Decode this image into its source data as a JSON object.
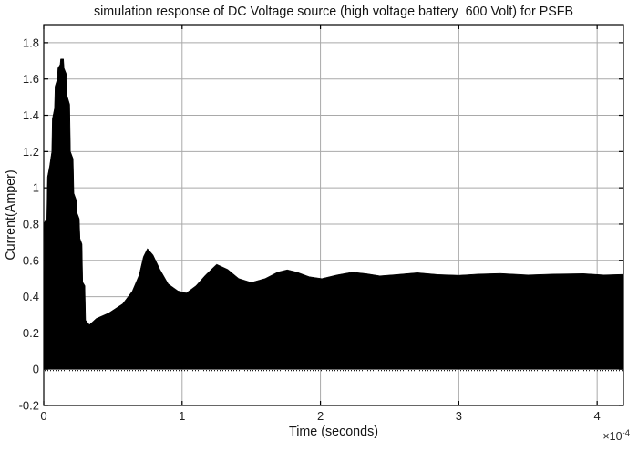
{
  "chart_data": {
    "type": "area",
    "title": "simulation response of DC Voltage source (high voltage battery  600 Volt) for PSFB",
    "xlabel": "Time (seconds)",
    "ylabel": "Current(Amper)",
    "x_multiplier": {
      "base": "×10",
      "exponent": "-4"
    },
    "xlim": [
      0,
      4.19
    ],
    "ylim": [
      -0.2,
      1.9
    ],
    "grid": true,
    "legend": "none",
    "axis_color": "#000000",
    "grid_color": "#a9a9a9",
    "text_color": "#1f1f1f",
    "xticks": [
      {
        "v": 0,
        "label": "0"
      },
      {
        "v": 1,
        "label": "1"
      },
      {
        "v": 2,
        "label": "2"
      },
      {
        "v": 3,
        "label": "3"
      },
      {
        "v": 4,
        "label": "4"
      }
    ],
    "yticks": [
      {
        "v": -0.2,
        "label": "-0.2"
      },
      {
        "v": 0,
        "label": "0"
      },
      {
        "v": 0.2,
        "label": "0.2"
      },
      {
        "v": 0.4,
        "label": "0.4"
      },
      {
        "v": 0.6,
        "label": "0.6"
      },
      {
        "v": 0.8,
        "label": "0.8"
      },
      {
        "v": 1,
        "label": "1"
      },
      {
        "v": 1.2,
        "label": "1.2"
      },
      {
        "v": 1.4,
        "label": "1.4"
      },
      {
        "v": 1.6,
        "label": "1.6"
      },
      {
        "v": 1.8,
        "label": "1.8"
      }
    ],
    "series": [
      {
        "name": "current",
        "color": "#000000",
        "render": "filled-band-from-baseline",
        "baseline": 0,
        "x_unit": "1e-4 s",
        "envelope": [
          [
            0.0,
            0.05
          ],
          [
            0.005,
            0.81
          ],
          [
            0.022,
            0.83
          ],
          [
            0.027,
            1.06
          ],
          [
            0.042,
            1.12
          ],
          [
            0.058,
            1.2
          ],
          [
            0.062,
            1.38
          ],
          [
            0.078,
            1.44
          ],
          [
            0.082,
            1.56
          ],
          [
            0.098,
            1.6
          ],
          [
            0.102,
            1.66
          ],
          [
            0.118,
            1.68
          ],
          [
            0.122,
            1.71
          ],
          [
            0.143,
            1.71
          ],
          [
            0.147,
            1.66
          ],
          [
            0.163,
            1.63
          ],
          [
            0.168,
            1.51
          ],
          [
            0.188,
            1.46
          ],
          [
            0.193,
            1.2
          ],
          [
            0.213,
            1.16
          ],
          [
            0.218,
            0.97
          ],
          [
            0.237,
            0.93
          ],
          [
            0.242,
            0.86
          ],
          [
            0.257,
            0.83
          ],
          [
            0.262,
            0.72
          ],
          [
            0.277,
            0.69
          ],
          [
            0.282,
            0.48
          ],
          [
            0.298,
            0.46
          ],
          [
            0.303,
            0.27
          ],
          [
            0.33,
            0.245
          ],
          [
            0.38,
            0.28
          ],
          [
            0.47,
            0.31
          ],
          [
            0.57,
            0.36
          ],
          [
            0.64,
            0.43
          ],
          [
            0.69,
            0.52
          ],
          [
            0.72,
            0.62
          ],
          [
            0.75,
            0.665
          ],
          [
            0.79,
            0.63
          ],
          [
            0.84,
            0.55
          ],
          [
            0.9,
            0.47
          ],
          [
            0.97,
            0.432
          ],
          [
            1.03,
            0.42
          ],
          [
            1.1,
            0.46
          ],
          [
            1.17,
            0.52
          ],
          [
            1.25,
            0.578
          ],
          [
            1.33,
            0.55
          ],
          [
            1.41,
            0.5
          ],
          [
            1.5,
            0.478
          ],
          [
            1.6,
            0.5
          ],
          [
            1.69,
            0.535
          ],
          [
            1.76,
            0.548
          ],
          [
            1.83,
            0.535
          ],
          [
            1.92,
            0.51
          ],
          [
            2.01,
            0.5
          ],
          [
            2.12,
            0.52
          ],
          [
            2.23,
            0.535
          ],
          [
            2.33,
            0.527
          ],
          [
            2.43,
            0.515
          ],
          [
            2.55,
            0.522
          ],
          [
            2.7,
            0.532
          ],
          [
            2.85,
            0.522
          ],
          [
            3.0,
            0.518
          ],
          [
            3.15,
            0.525
          ],
          [
            3.3,
            0.528
          ],
          [
            3.5,
            0.52
          ],
          [
            3.7,
            0.525
          ],
          [
            3.9,
            0.527
          ],
          [
            4.05,
            0.52
          ],
          [
            4.19,
            0.523
          ]
        ]
      }
    ]
  }
}
